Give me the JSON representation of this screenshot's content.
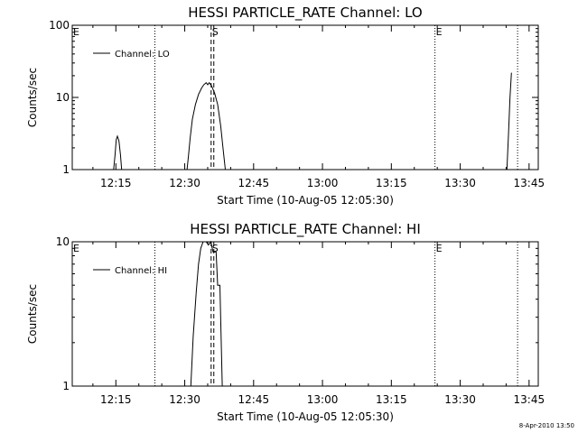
{
  "chart_data": [
    {
      "type": "line",
      "title": "HESSI PARTICLE_RATE Channel: LO",
      "xlabel": "Start Time (10-Aug-05 12:05:30)",
      "ylabel": "Counts/sec",
      "yscale": "log",
      "ylim": [
        1,
        100
      ],
      "xlim": [
        "12:05:30",
        "13:47:00"
      ],
      "xticks": [
        "12:15",
        "12:30",
        "12:45",
        "13:00",
        "13:15",
        "13:30",
        "13:45"
      ],
      "yticks": [
        "1",
        "10",
        "100"
      ],
      "legend": {
        "label": "Channel: LO",
        "position": "top-left"
      },
      "series": [
        {
          "name": "Channel: LO",
          "points": [
            [
              "12:14:30",
              1.0
            ],
            [
              "12:14:50",
              1.6
            ],
            [
              "12:15:05",
              2.6
            ],
            [
              "12:15:20",
              2.9
            ],
            [
              "12:15:40",
              2.5
            ],
            [
              "12:16:00",
              1.6
            ],
            [
              "12:16:15",
              1.0
            ],
            [
              "12:30:30",
              1.0
            ],
            [
              "12:30:50",
              1.6
            ],
            [
              "12:31:10",
              2.7
            ],
            [
              "12:31:40",
              5.0
            ],
            [
              "12:32:20",
              8.0
            ],
            [
              "12:33:00",
              11.0
            ],
            [
              "12:33:40",
              13.5
            ],
            [
              "12:34:10",
              15.0
            ],
            [
              "12:34:40",
              16.0
            ],
            [
              "12:35:00",
              15.0
            ],
            [
              "12:35:20",
              16.0
            ],
            [
              "12:35:50",
              14.5
            ],
            [
              "12:36:30",
              11.5
            ],
            [
              "12:37:10",
              8.0
            ],
            [
              "12:37:50",
              4.0
            ],
            [
              "12:38:20",
              2.0
            ],
            [
              "12:38:50",
              1.0
            ],
            [
              "13:40:10",
              1.0
            ],
            [
              "13:40:30",
              3.0
            ],
            [
              "13:40:50",
              10.0
            ],
            [
              "13:41:10",
              22.0
            ]
          ]
        }
      ],
      "markers": [
        {
          "label": "E",
          "time": "12:05:30",
          "style": "dotted"
        },
        {
          "label": "",
          "time": "12:23:30",
          "style": "dotted"
        },
        {
          "label": "S",
          "time": "12:35:45",
          "style": "dashed"
        },
        {
          "label": "",
          "time": "12:36:20",
          "style": "dashed"
        },
        {
          "label": "E",
          "time": "13:24:30",
          "style": "dotted"
        },
        {
          "label": "",
          "time": "13:42:30",
          "style": "dotted"
        }
      ]
    },
    {
      "type": "line",
      "title": "HESSI PARTICLE_RATE Channel: HI",
      "xlabel": "Start Time (10-Aug-05 12:05:30)",
      "ylabel": "Counts/sec",
      "yscale": "log",
      "ylim": [
        1,
        10
      ],
      "xlim": [
        "12:05:30",
        "13:47:00"
      ],
      "xticks": [
        "12:15",
        "12:30",
        "12:45",
        "13:00",
        "13:15",
        "13:30",
        "13:45"
      ],
      "yticks": [
        "1",
        "10"
      ],
      "legend": {
        "label": "Channel: HI",
        "position": "top-left"
      },
      "series": [
        {
          "name": "Channel: HI",
          "points": [
            [
              "12:31:20",
              1.0
            ],
            [
              "12:31:50",
              2.2
            ],
            [
              "12:32:30",
              4.5
            ],
            [
              "12:33:00",
              7.0
            ],
            [
              "12:33:30",
              9.0
            ],
            [
              "12:34:00",
              10.0
            ],
            [
              "12:34:40",
              10.0
            ],
            [
              "12:35:10",
              9.5
            ],
            [
              "12:35:40",
              10.0
            ],
            [
              "12:36:10",
              8.5
            ],
            [
              "12:36:50",
              8.5
            ],
            [
              "12:37:10",
              5.0
            ],
            [
              "12:37:40",
              5.0
            ],
            [
              "12:38:10",
              1.0
            ]
          ]
        }
      ],
      "markers": [
        {
          "label": "E",
          "time": "12:05:30",
          "style": "dotted"
        },
        {
          "label": "",
          "time": "12:23:30",
          "style": "dotted"
        },
        {
          "label": "S",
          "time": "12:35:45",
          "style": "dashed"
        },
        {
          "label": "",
          "time": "12:36:20",
          "style": "dashed"
        },
        {
          "label": "E",
          "time": "13:24:30",
          "style": "dotted"
        },
        {
          "label": "",
          "time": "13:42:30",
          "style": "dotted"
        }
      ]
    }
  ],
  "footer": {
    "stamp": "8-Apr-2010 13:50"
  },
  "colors": {
    "line": "#000000",
    "background": "#ffffff"
  }
}
